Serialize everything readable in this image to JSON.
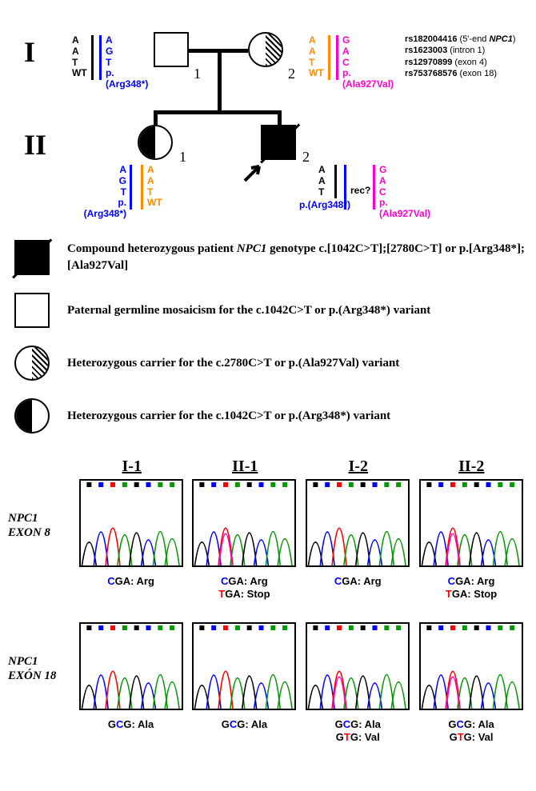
{
  "pedigree": {
    "generations": [
      "I",
      "II"
    ],
    "people": {
      "I1": {
        "shape": "square",
        "fill": "none",
        "num": "1"
      },
      "I2": {
        "shape": "circle",
        "fill": "half-right-hatch",
        "num": "2"
      },
      "II1": {
        "shape": "circle",
        "fill": "half-left-fill",
        "num": "1"
      },
      "II2": {
        "shape": "square",
        "fill": "filled",
        "num": "2",
        "deceased": true,
        "proband": true
      }
    },
    "alleles": {
      "I1_left": {
        "bar_color": "#000000",
        "text_color": "#000000",
        "lines": [
          "A",
          "A",
          "T",
          "WT"
        ]
      },
      "I1_right": {
        "bar_color": "#0000ff",
        "text_color": "#0000ff",
        "lines": [
          "A",
          "G",
          "T",
          "p.(Arg348*)"
        ]
      },
      "I2_left": {
        "bar_color": "#ff8c00",
        "text_color": "#ff8c00",
        "lines": [
          "A",
          "A",
          "T",
          "WT"
        ]
      },
      "I2_right": {
        "bar_color": "#ff00cc",
        "text_color": "#ff00cc",
        "lines": [
          "G",
          "A",
          "C",
          "p.(Ala927Val)"
        ]
      },
      "II1_left": {
        "bar_color": "#0000ff",
        "text_color": "#0000ff",
        "lines": [
          "A",
          "G",
          "T",
          "p.(Arg348*)"
        ]
      },
      "II1_right": {
        "bar_color": "#ff8c00",
        "text_color": "#ff8c00",
        "lines": [
          "A",
          "A",
          "T",
          "WT"
        ]
      },
      "II2_left": {
        "bar_color": "#000000",
        "text_color": "#000000",
        "lines": [
          "A",
          "A",
          "T"
        ],
        "sublabel_color": "#0000ff",
        "sublabel": "p.(Arg348*)"
      },
      "II2_mid": {
        "bar_color": "#0000ff",
        "text_color": "#000000",
        "lines": [
          "rec?"
        ]
      },
      "II2_right": {
        "bar_color": "#ff00cc",
        "text_color": "#ff00cc",
        "lines": [
          "G",
          "A",
          "C",
          "p.(Ala927Val)"
        ]
      }
    },
    "snps": [
      {
        "id": "rs182004416",
        "loc": "(5'-end ",
        "gene": "NPC1",
        "after": ")"
      },
      {
        "id": "rs1623003",
        "loc": "(intron 1)"
      },
      {
        "id": "rs12970899",
        "loc": "(exon 4)"
      },
      {
        "id": "rs753768576",
        "loc": "(exon 18)"
      }
    ]
  },
  "legend": [
    {
      "symbol": "square-filled-slash",
      "text_pre": "Compound heterozygous patient ",
      "gene": "NPC1",
      "text_post": " genotype c.[1042C>T];[2780C>T] or p.[Arg348*];[Ala927Val]"
    },
    {
      "symbol": "square-empty",
      "text_pre": "Paternal germline mosaicism for the c.1042C>T or p.(Arg348*) variant",
      "gene": "",
      "text_post": ""
    },
    {
      "symbol": "circle-half-hatch",
      "text_pre": "Heterozygous carrier for the c.2780C>T or p.(Ala927Val) variant",
      "gene": "",
      "text_post": ""
    },
    {
      "symbol": "circle-half-fill",
      "text_pre": "Heterozygous carrier for the c.1042C>T or p.(Arg348*) variant",
      "gene": "",
      "text_post": ""
    }
  ],
  "chromatograms": {
    "gene": "NPC1",
    "headers": [
      "I-1",
      "II-1",
      "I-2",
      "II-2"
    ],
    "rows": [
      {
        "exon": "EXON 8",
        "cells": [
          {
            "labels": [
              [
                {
                  "c": "#0000ff",
                  "t": "C"
                },
                {
                  "c": "#000000",
                  "t": "GA: Arg"
                }
              ]
            ],
            "hetero": false
          },
          {
            "labels": [
              [
                {
                  "c": "#0000ff",
                  "t": "C"
                },
                {
                  "c": "#000000",
                  "t": "GA: Arg"
                }
              ],
              [
                {
                  "c": "#ff0000",
                  "t": "T"
                },
                {
                  "c": "#000000",
                  "t": "GA: Stop"
                }
              ]
            ],
            "hetero": true
          },
          {
            "labels": [
              [
                {
                  "c": "#0000ff",
                  "t": "C"
                },
                {
                  "c": "#000000",
                  "t": "GA: Arg"
                }
              ]
            ],
            "hetero": false
          },
          {
            "labels": [
              [
                {
                  "c": "#0000ff",
                  "t": "C"
                },
                {
                  "c": "#000000",
                  "t": "GA: Arg"
                }
              ],
              [
                {
                  "c": "#ff0000",
                  "t": "T"
                },
                {
                  "c": "#000000",
                  "t": "GA: Stop"
                }
              ]
            ],
            "hetero": true
          }
        ]
      },
      {
        "exon": "EXÓN 18",
        "cells": [
          {
            "labels": [
              [
                {
                  "c": "#000000",
                  "t": "G"
                },
                {
                  "c": "#0000ff",
                  "t": "C"
                },
                {
                  "c": "#000000",
                  "t": "G: Ala"
                }
              ]
            ],
            "hetero": false
          },
          {
            "labels": [
              [
                {
                  "c": "#000000",
                  "t": "G"
                },
                {
                  "c": "#0000ff",
                  "t": "C"
                },
                {
                  "c": "#000000",
                  "t": "G: Ala"
                }
              ]
            ],
            "hetero": false
          },
          {
            "labels": [
              [
                {
                  "c": "#000000",
                  "t": "G"
                },
                {
                  "c": "#0000ff",
                  "t": "C"
                },
                {
                  "c": "#000000",
                  "t": "G: Ala"
                }
              ],
              [
                {
                  "c": "#000000",
                  "t": "G"
                },
                {
                  "c": "#ff0000",
                  "t": "T"
                },
                {
                  "c": "#000000",
                  "t": "G: Val"
                }
              ]
            ],
            "hetero": true
          },
          {
            "labels": [
              [
                {
                  "c": "#000000",
                  "t": "G"
                },
                {
                  "c": "#0000ff",
                  "t": "C"
                },
                {
                  "c": "#000000",
                  "t": "G: Ala"
                }
              ],
              [
                {
                  "c": "#000000",
                  "t": "G"
                },
                {
                  "c": "#ff0000",
                  "t": "T"
                },
                {
                  "c": "#000000",
                  "t": "G: Val"
                }
              ]
            ],
            "hetero": true
          }
        ]
      }
    ],
    "trace_colors": {
      "A": "#009900",
      "C": "#0000ff",
      "G": "#000000",
      "T": "#ff0000"
    }
  },
  "style": {
    "stroke_width": 2.5,
    "symbol_size": 44,
    "background": "#ffffff"
  }
}
